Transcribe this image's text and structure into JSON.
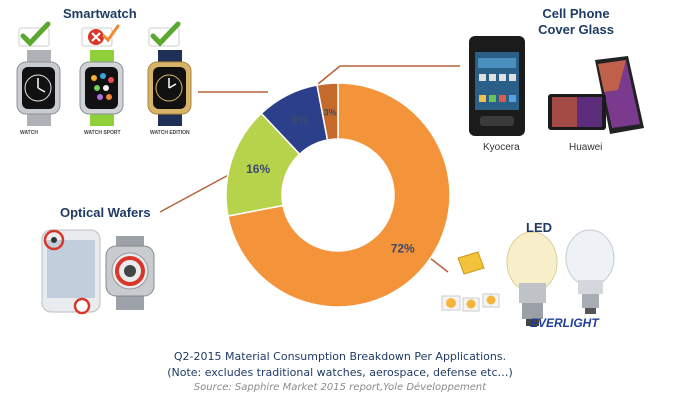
{
  "labels": {
    "smartwatch": "Smartwatch",
    "cell_phone_line1": "Cell Phone",
    "cell_phone_line2": "Cover Glass",
    "optical_wafers": "Optical Wafers",
    "led": "LED",
    "kyocera": "Kyocera",
    "huawei": "Huawei",
    "everlight": "EVERLIGHT",
    "watch_label": "WATCH",
    "watch_sport_label": "WATCH SPORT",
    "watch_edition_label": "WATCH EDITION"
  },
  "caption": {
    "line1": "Q2-2015 Material Consumption Breakdown Per Applications.",
    "line2": "(Note: excludes traditional watches, aerospace, defense etc…)",
    "source": "Source: Sapphire Market 2015 report,Yole Développement"
  },
  "colors": {
    "led": "#f4943a",
    "optical_wafers": "#b7d34c",
    "cell_phone": "#2c3f8a",
    "smartwatch": "#c46b2c",
    "connector": "#b5623a",
    "check": "#5aa82e",
    "cross": "#d9362a"
  },
  "chart_data": {
    "type": "pie",
    "donut": true,
    "title": "",
    "series": [
      {
        "categories": [
          "LED",
          "Optical Wafers",
          "Cell Phone Cover Glass",
          "Smartwatch"
        ],
        "values": [
          72,
          16,
          9,
          3
        ],
        "labels": [
          "72%",
          "16%",
          "9%",
          "3%"
        ]
      }
    ],
    "start_at": "12 o'clock",
    "direction": "clockwise",
    "legend": "none"
  }
}
